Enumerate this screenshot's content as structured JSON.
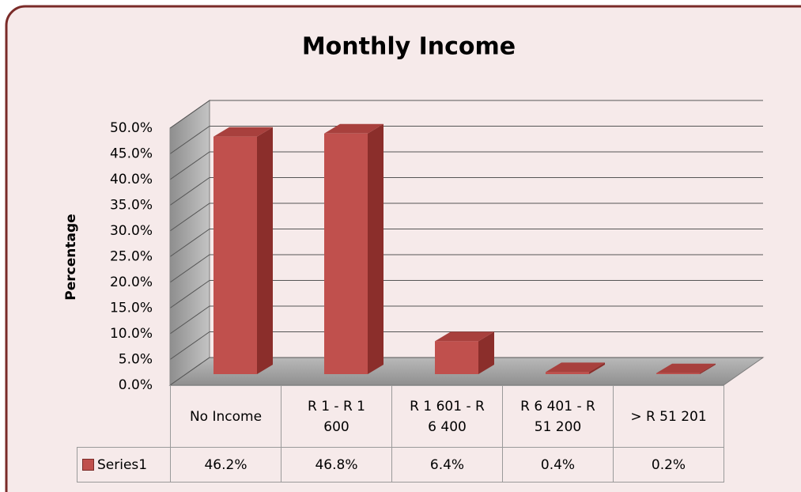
{
  "chart_data": {
    "type": "bar3d",
    "title": "Monthly Income",
    "y_label": "Percentage",
    "categories": [
      "No Income",
      "R 1 - R 1 600",
      "R 1 601 - R 6 400",
      "R 6 401 - R 51 200",
      "> R 51 201"
    ],
    "series": [
      {
        "name": "Series1",
        "color": "#c0504d",
        "values": [
          46.2,
          46.8,
          6.4,
          0.4,
          0.2
        ],
        "value_labels": [
          "46.2%",
          "46.8%",
          "6.4%",
          "0.4%",
          "0.2%"
        ]
      }
    ],
    "ylim": [
      0,
      50
    ],
    "yticks": [
      {
        "value": 0,
        "label": "0.0%"
      },
      {
        "value": 5,
        "label": "5.0%"
      },
      {
        "value": 10,
        "label": "10.0%"
      },
      {
        "value": 15,
        "label": "15.0%"
      },
      {
        "value": 20,
        "label": "20.0%"
      },
      {
        "value": 25,
        "label": "25.0%"
      },
      {
        "value": 30,
        "label": "30.0%"
      },
      {
        "value": 35,
        "label": "35.0%"
      },
      {
        "value": 40,
        "label": "40.0%"
      },
      {
        "value": 45,
        "label": "45.0%"
      },
      {
        "value": 50,
        "label": "50.0%"
      }
    ],
    "grid": true
  }
}
